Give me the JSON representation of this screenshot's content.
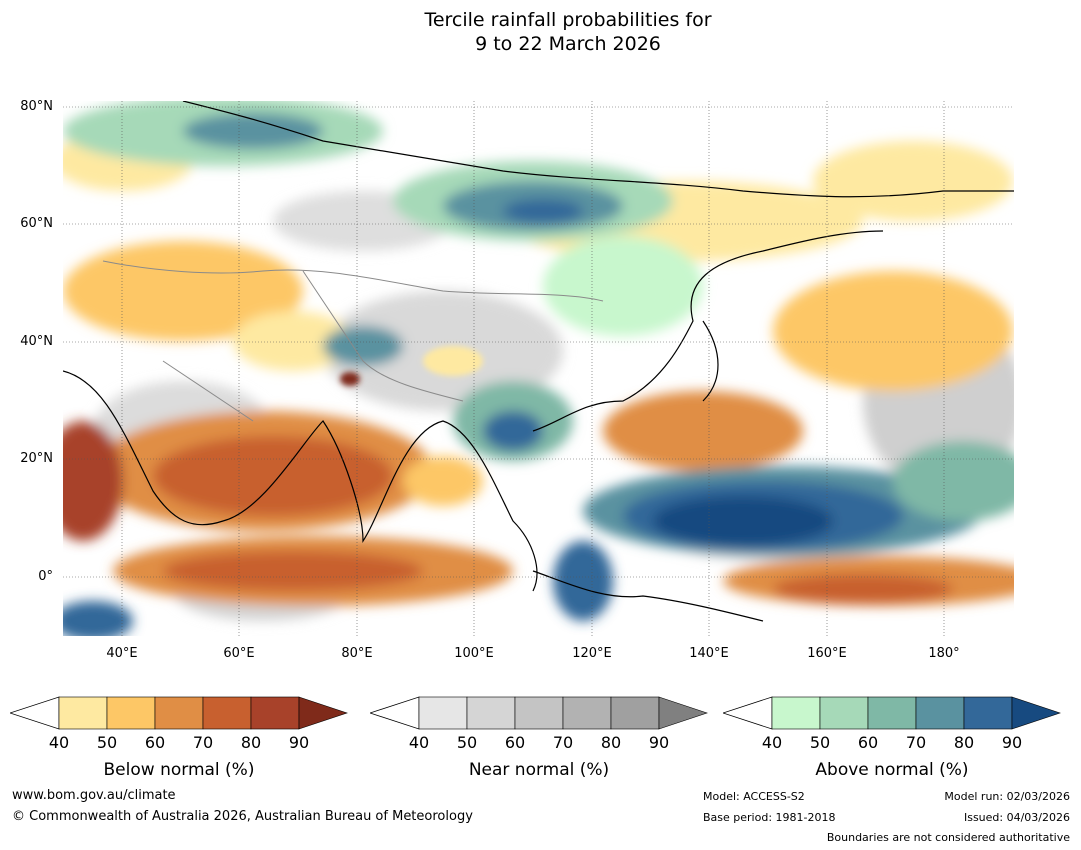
{
  "title": {
    "line1": "Tercile rainfall probabilities for",
    "line2": "9 to 22 March 2026"
  },
  "axes": {
    "lat_labels": [
      "80°N",
      "60°N",
      "40°N",
      "20°N",
      "0°"
    ],
    "lon_labels": [
      "40°E",
      "60°E",
      "80°E",
      "100°E",
      "120°E",
      "140°E",
      "160°E",
      "180°"
    ]
  },
  "legends": {
    "below": {
      "title": "Below normal (%)",
      "ticks": [
        "40",
        "50",
        "60",
        "70",
        "80",
        "90"
      ],
      "colors": [
        "#fee9a1",
        "#fdc766",
        "#e08e45",
        "#c8602f",
        "#a8422a",
        "#7f2a1a"
      ]
    },
    "near": {
      "title": "Near normal (%)",
      "ticks": [
        "40",
        "50",
        "60",
        "70",
        "80",
        "90"
      ],
      "colors": [
        "#e6e6e6",
        "#d5d5d5",
        "#c4c4c4",
        "#b2b2b2",
        "#a0a0a0",
        "#808080"
      ]
    },
    "above": {
      "title": "Above normal (%)",
      "ticks": [
        "40",
        "50",
        "60",
        "70",
        "80",
        "90"
      ],
      "colors": [
        "#c8f7cd",
        "#a6d9b8",
        "#7fb8a6",
        "#5a92a0",
        "#336899",
        "#174a80"
      ]
    }
  },
  "footer": {
    "url": "www.bom.gov.au/climate",
    "copyright": "© Commonwealth of Australia 2026, Australian Bureau of Meteorology",
    "model": "Model: ACCESS-S2",
    "base_period": "Base period: 1981-2018",
    "model_run": "Model run: 02/03/2026",
    "issued": "Issued: 04/03/2026",
    "boundaries": "Boundaries are not considered authoritative"
  }
}
